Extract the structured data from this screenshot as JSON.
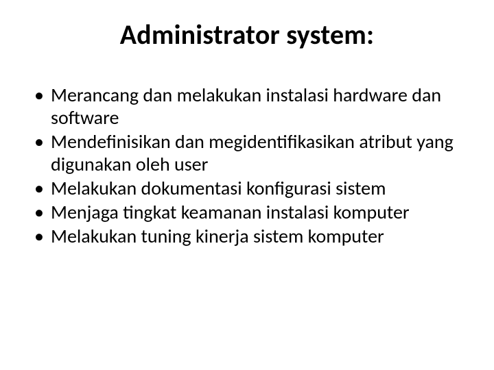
{
  "slide": {
    "type": "document",
    "background_color": "#ffffff",
    "text_color": "#000000",
    "font_family": "Calibri",
    "title": {
      "text": "Administrator system:",
      "fontsize": 40,
      "weight": 700,
      "align": "center"
    },
    "bullets": {
      "fontsize": 28,
      "marker": "•",
      "items": [
        "Merancang dan melakukan instalasi hardware dan software",
        "Mendefinisikan dan megidentifikasikan atribut yang digunakan oleh user",
        "Melakukan dokumentasi konfigurasi sistem",
        "Menjaga tingkat keamanan instalasi komputer",
        "Melakukan tuning kinerja sistem komputer"
      ]
    }
  }
}
